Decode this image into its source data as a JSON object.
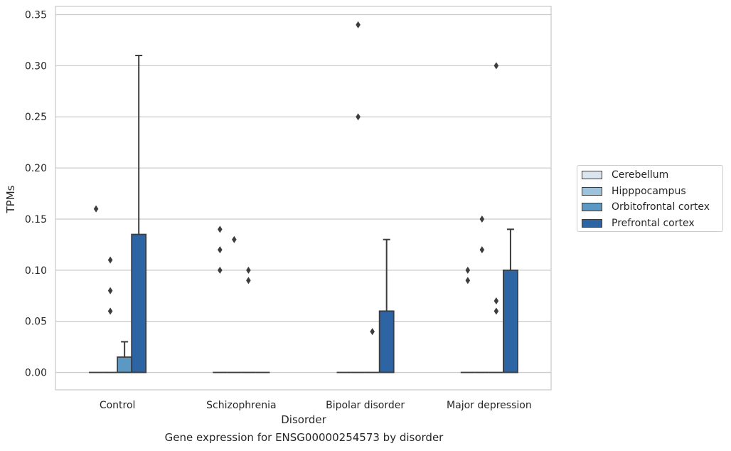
{
  "chart_data": {
    "type": "box",
    "xlabel": "Disorder",
    "ylabel": "TPMs",
    "caption": "Gene expression for ENSG00000254573 by disorder",
    "categories": [
      "Control",
      "Schizophrenia",
      "Bipolar disorder",
      "Major depression"
    ],
    "ylim": [
      -0.017,
      0.358
    ],
    "yticks": [
      "0.00",
      "0.05",
      "0.10",
      "0.15",
      "0.20",
      "0.25",
      "0.30",
      "0.35"
    ],
    "ytick_values": [
      0,
      0.05,
      0.1,
      0.15,
      0.2,
      0.25,
      0.3,
      0.35
    ],
    "grid": "horizontal",
    "legend_position": "right",
    "series": [
      {
        "name": "Cerebellum",
        "color": "#dae5f0",
        "boxes": [
          {
            "q1": 0,
            "median": 0,
            "q3": 0,
            "whisker_low": 0,
            "whisker_high": 0,
            "outliers": [
              0.16
            ]
          },
          {
            "q1": 0,
            "median": 0,
            "q3": 0,
            "whisker_low": 0,
            "whisker_high": 0,
            "outliers": [
              0.1,
              0.12,
              0.14
            ]
          },
          {
            "q1": 0,
            "median": 0,
            "q3": 0,
            "whisker_low": 0,
            "whisker_high": 0,
            "outliers": []
          },
          {
            "q1": 0,
            "median": 0,
            "q3": 0,
            "whisker_low": 0,
            "whisker_high": 0,
            "outliers": [
              0.09,
              0.1
            ]
          }
        ]
      },
      {
        "name": "Hipppocampus",
        "color": "#9dc3dc",
        "boxes": [
          {
            "q1": 0,
            "median": 0,
            "q3": 0,
            "whisker_low": 0,
            "whisker_high": 0,
            "outliers": [
              0.06,
              0.08,
              0.11
            ]
          },
          {
            "q1": 0,
            "median": 0,
            "q3": 0,
            "whisker_low": 0,
            "whisker_high": 0,
            "outliers": [
              0.13
            ]
          },
          {
            "q1": 0,
            "median": 0,
            "q3": 0,
            "whisker_low": 0,
            "whisker_high": 0,
            "outliers": [
              0.25,
              0.34
            ]
          },
          {
            "q1": 0,
            "median": 0,
            "q3": 0,
            "whisker_low": 0,
            "whisker_high": 0,
            "outliers": [
              0.12,
              0.15
            ]
          }
        ]
      },
      {
        "name": "Orbitofrontal cortex",
        "color": "#5b98c4",
        "boxes": [
          {
            "q1": 0,
            "median": 0,
            "q3": 0.015,
            "whisker_low": 0,
            "whisker_high": 0.03,
            "outliers": []
          },
          {
            "q1": 0,
            "median": 0,
            "q3": 0,
            "whisker_low": 0,
            "whisker_high": 0,
            "outliers": [
              0.09,
              0.1
            ]
          },
          {
            "q1": 0,
            "median": 0,
            "q3": 0,
            "whisker_low": 0,
            "whisker_high": 0,
            "outliers": [
              0.04
            ]
          },
          {
            "q1": 0,
            "median": 0,
            "q3": 0,
            "whisker_low": 0,
            "whisker_high": 0,
            "outliers": [
              0.06,
              0.07,
              0.3
            ]
          }
        ]
      },
      {
        "name": "Prefrontal cortex",
        "color": "#2d64a3",
        "boxes": [
          {
            "q1": 0,
            "median": 0,
            "q3": 0.135,
            "whisker_low": 0,
            "whisker_high": 0.31,
            "outliers": []
          },
          {
            "q1": 0,
            "median": 0,
            "q3": 0,
            "whisker_low": 0,
            "whisker_high": 0,
            "outliers": []
          },
          {
            "q1": 0,
            "median": 0,
            "q3": 0.06,
            "whisker_low": 0,
            "whisker_high": 0.13,
            "outliers": []
          },
          {
            "q1": 0,
            "median": 0,
            "q3": 0.1,
            "whisker_low": 0,
            "whisker_high": 0.14,
            "outliers": []
          }
        ]
      }
    ]
  }
}
